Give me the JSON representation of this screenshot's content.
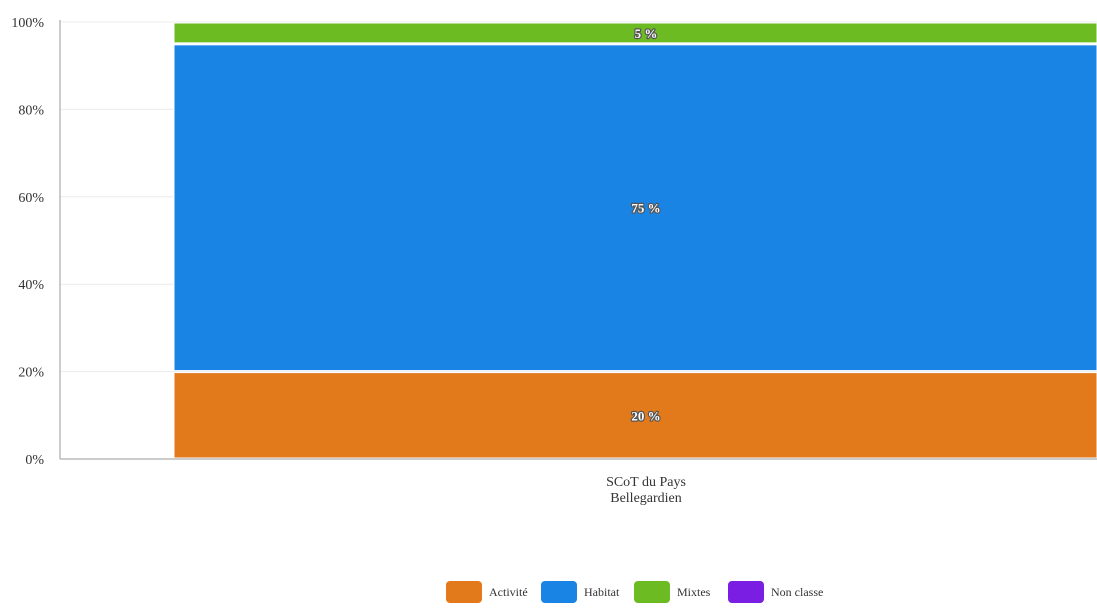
{
  "chart_data": {
    "type": "bar",
    "stacked": true,
    "percent": true,
    "title": "",
    "xlabel": "",
    "ylabel": "",
    "ylim": [
      0,
      100
    ],
    "yticks": [
      "0%",
      "20%",
      "40%",
      "60%",
      "80%",
      "100%"
    ],
    "categories": [
      [
        "SCoT du Pays",
        "Bellegardien"
      ]
    ],
    "grid": true,
    "legend_position": "bottom-center",
    "series": [
      {
        "name": "Activité",
        "color": "#e27a1c",
        "values": [
          20
        ],
        "labels": [
          "20 %"
        ]
      },
      {
        "name": "Habitat",
        "color": "#1a84e5",
        "values": [
          75
        ],
        "labels": [
          "75 %"
        ]
      },
      {
        "name": "Mixtes",
        "color": "#6cbb22",
        "values": [
          5
        ],
        "labels": [
          "5 %"
        ]
      },
      {
        "name": "Non classe",
        "color": "#7b1ee3",
        "values": [
          0
        ],
        "labels": [
          ""
        ]
      }
    ]
  }
}
